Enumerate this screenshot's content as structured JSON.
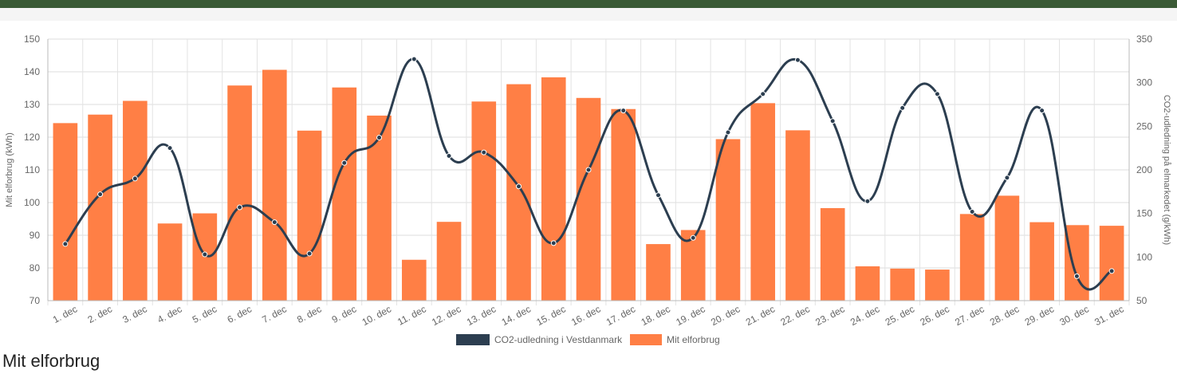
{
  "section": {
    "title": "Mit elforbrug"
  },
  "chart_data": {
    "type": "bar",
    "categories": [
      "1. dec",
      "2. dec",
      "3. dec",
      "4. dec",
      "5. dec",
      "6. dec",
      "7. dec",
      "8. dec",
      "9. dec",
      "10. dec",
      "11. dec",
      "12. dec",
      "13. dec",
      "14. dec",
      "15. dec",
      "16. dec",
      "17. dec",
      "18. dec",
      "19. dec",
      "20. dec",
      "21. dec",
      "22. dec",
      "23. dec",
      "24. dec",
      "25. dec",
      "26. dec",
      "27. dec",
      "28. dec",
      "29. dec",
      "30. dec",
      "31. dec"
    ],
    "series": [
      {
        "name": "CO2-udledning i Vestdanmark",
        "type": "line",
        "axis": "right",
        "color": "#2c3e50",
        "values": [
          115,
          172,
          190,
          225,
          103,
          157,
          140,
          104,
          208,
          237,
          327,
          216,
          220,
          181,
          116,
          200,
          268,
          171,
          122,
          243,
          287,
          326,
          256,
          164,
          271,
          287,
          152,
          191,
          268,
          78,
          84
        ]
      },
      {
        "name": "Mit elforbrug",
        "type": "bar",
        "axis": "left",
        "color": "#ff7f45",
        "values": [
          124.3,
          126.9,
          131.1,
          93.6,
          96.7,
          135.8,
          140.6,
          122,
          135.2,
          126.6,
          82.5,
          94.1,
          130.9,
          136.2,
          138.3,
          132,
          128.6,
          87.3,
          91.6,
          119.4,
          130.4,
          122.1,
          98.3,
          80.5,
          79.8,
          79.5,
          96.5,
          102.1,
          94,
          93.1,
          92.9
        ]
      }
    ],
    "ylabel_left": "Mit elforbrug (kWh)",
    "ylabel_right": "CO2-udledning på elmarkedet (g/kWh)",
    "ylim_left": [
      70,
      150
    ],
    "yticks_left": [
      70,
      80,
      90,
      100,
      110,
      120,
      130,
      140,
      150
    ],
    "ylim_right": [
      50,
      350
    ],
    "yticks_right": [
      50,
      100,
      150,
      200,
      250,
      300,
      350
    ],
    "grid": true,
    "legend": "bottom"
  }
}
